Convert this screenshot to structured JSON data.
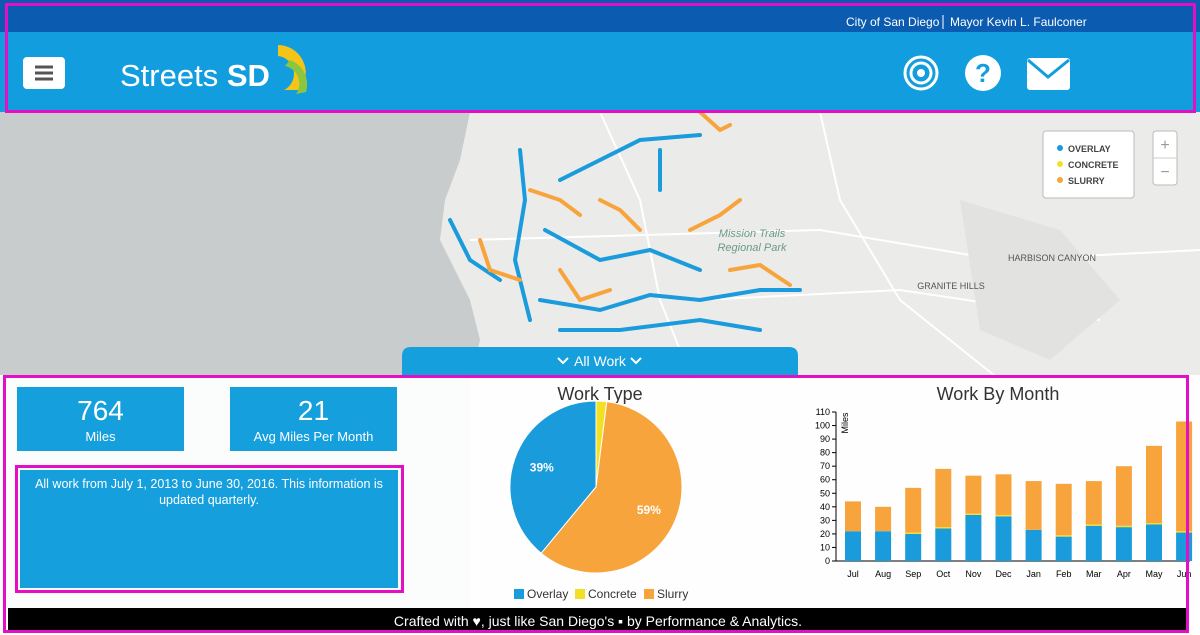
{
  "header": {
    "city": "City of San Diego",
    "mayor": "Mayor Kevin L. Faulconer",
    "logo_streets": "Streets",
    "logo_sd": "SD"
  },
  "map": {
    "legend": [
      "OVERLAY",
      "CONCRETE",
      "SLURRY"
    ],
    "zoom_in": "+",
    "zoom_out": "−",
    "labels": [
      "Mission Trails",
      "Regional Park",
      "HARBISON CANYON",
      "GRANITE HILLS"
    ],
    "toggle": "All Work"
  },
  "stats": [
    {
      "value": 764,
      "label": "Miles"
    },
    {
      "value": 21,
      "label": "Avg Miles Per Month"
    }
  ],
  "note": "All work from July 1, 2013 to June 30, 2016. This information is updated quarterly.",
  "chart_data": [
    {
      "type": "pie",
      "title": "Work Type",
      "categories": [
        "Overlay",
        "Concrete",
        "Slurry"
      ],
      "values": [
        39,
        2,
        59
      ],
      "value_labels": [
        "39%",
        null,
        "59%"
      ],
      "colors": [
        "#1a9bdb",
        "#f3e025",
        "#f8a43c"
      ]
    },
    {
      "type": "bar",
      "stacked": true,
      "title": "Work By Month",
      "y_label": "Miles",
      "categories": [
        "Jul",
        "Aug",
        "Sep",
        "Oct",
        "Nov",
        "Dec",
        "Jan",
        "Feb",
        "Mar",
        "Apr",
        "May",
        "Jun"
      ],
      "series": [
        {
          "color": "#1a9bdb",
          "values": [
            22,
            22,
            20,
            24,
            34,
            33,
            23,
            18,
            26,
            25,
            27,
            21
          ]
        },
        {
          "color": "#f3e025",
          "values": [
            0,
            0,
            1,
            1,
            1,
            1,
            0,
            1,
            1,
            1,
            1,
            1
          ]
        },
        {
          "color": "#f8a43c",
          "values": [
            22,
            18,
            33,
            43,
            28,
            30,
            36,
            38,
            32,
            44,
            57,
            81
          ]
        }
      ],
      "ylim": [
        0,
        110
      ],
      "yticks": [
        0,
        10,
        20,
        30,
        40,
        50,
        60,
        70,
        80,
        90,
        100,
        110
      ]
    }
  ],
  "footer": {
    "crafted": "Crafted with",
    "mid": ", just like San Diego's",
    "by": "by Performance & Analytics."
  }
}
